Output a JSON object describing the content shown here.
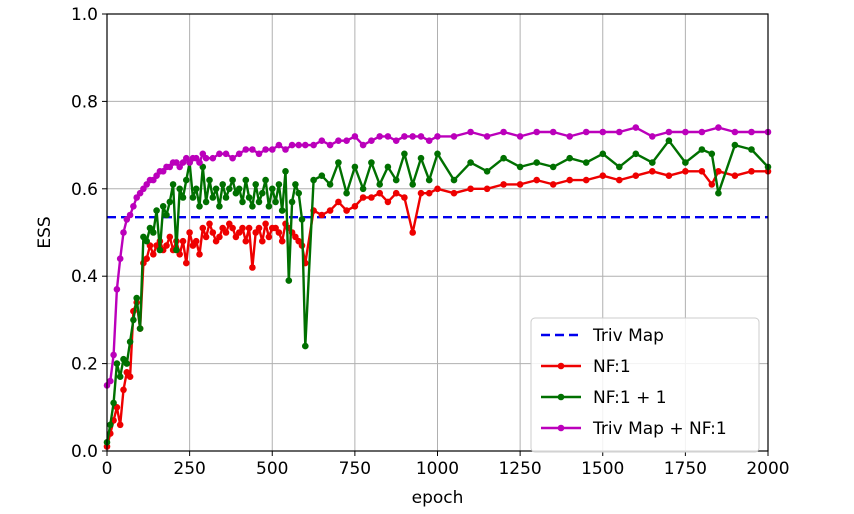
{
  "chart_data": {
    "type": "line",
    "title": "",
    "xlabel": "epoch",
    "ylabel": "ESS",
    "xlim": [
      0,
      2000
    ],
    "ylim": [
      0.0,
      1.0
    ],
    "grid": true,
    "legend_position": "bottom-right",
    "x_ticks": [
      "0",
      "250",
      "500",
      "750",
      "1000",
      "1250",
      "1500",
      "1750",
      "2000"
    ],
    "y_ticks": [
      "0.0",
      "0.2",
      "0.4",
      "0.6",
      "0.8",
      "1.0"
    ],
    "series": [
      {
        "name": "Triv Map",
        "color": "#0000ee",
        "style": "dashed",
        "markers": false,
        "x": [
          0,
          2000
        ],
        "y": [
          0.535,
          0.535
        ]
      },
      {
        "name": "NF:1",
        "color": "#ee0000",
        "style": "solid",
        "markers": true,
        "x": [
          0,
          10,
          20,
          30,
          40,
          50,
          60,
          70,
          80,
          90,
          100,
          110,
          120,
          130,
          140,
          150,
          160,
          170,
          180,
          190,
          200,
          210,
          220,
          230,
          240,
          250,
          260,
          270,
          280,
          290,
          300,
          310,
          320,
          330,
          340,
          350,
          360,
          370,
          380,
          390,
          400,
          410,
          420,
          430,
          440,
          450,
          460,
          470,
          480,
          490,
          500,
          510,
          520,
          530,
          540,
          550,
          560,
          570,
          580,
          590,
          600,
          625,
          650,
          675,
          700,
          725,
          750,
          775,
          800,
          825,
          850,
          875,
          900,
          925,
          950,
          975,
          1000,
          1050,
          1100,
          1150,
          1200,
          1250,
          1300,
          1350,
          1400,
          1450,
          1500,
          1550,
          1600,
          1650,
          1700,
          1750,
          1800,
          1830,
          1850,
          1900,
          1950,
          2000
        ],
        "y": [
          0.01,
          0.04,
          0.07,
          0.1,
          0.06,
          0.14,
          0.18,
          0.17,
          0.32,
          0.34,
          0.28,
          0.43,
          0.44,
          0.47,
          0.45,
          0.47,
          0.48,
          0.46,
          0.47,
          0.49,
          0.46,
          0.48,
          0.45,
          0.48,
          0.43,
          0.5,
          0.47,
          0.48,
          0.45,
          0.51,
          0.49,
          0.52,
          0.5,
          0.48,
          0.49,
          0.51,
          0.5,
          0.52,
          0.51,
          0.49,
          0.5,
          0.51,
          0.48,
          0.51,
          0.42,
          0.5,
          0.51,
          0.48,
          0.52,
          0.49,
          0.51,
          0.51,
          0.5,
          0.48,
          0.52,
          0.51,
          0.5,
          0.49,
          0.48,
          0.47,
          0.43,
          0.55,
          0.54,
          0.55,
          0.57,
          0.55,
          0.56,
          0.58,
          0.58,
          0.59,
          0.57,
          0.59,
          0.58,
          0.5,
          0.59,
          0.59,
          0.6,
          0.59,
          0.6,
          0.6,
          0.61,
          0.61,
          0.62,
          0.61,
          0.62,
          0.62,
          0.63,
          0.62,
          0.63,
          0.64,
          0.63,
          0.64,
          0.64,
          0.61,
          0.64,
          0.63,
          0.64,
          0.64
        ]
      },
      {
        "name": "NF:1 + 1",
        "color": "#007000",
        "style": "solid",
        "markers": true,
        "x": [
          0,
          10,
          20,
          30,
          40,
          50,
          60,
          70,
          80,
          90,
          100,
          110,
          120,
          130,
          140,
          150,
          160,
          170,
          180,
          190,
          200,
          210,
          220,
          230,
          240,
          250,
          260,
          270,
          280,
          290,
          300,
          310,
          320,
          330,
          340,
          350,
          360,
          370,
          380,
          390,
          400,
          410,
          420,
          430,
          440,
          450,
          460,
          470,
          480,
          490,
          500,
          510,
          520,
          530,
          540,
          550,
          560,
          570,
          580,
          590,
          600,
          625,
          650,
          675,
          700,
          725,
          750,
          775,
          800,
          825,
          850,
          875,
          900,
          925,
          950,
          975,
          1000,
          1050,
          1100,
          1150,
          1200,
          1250,
          1300,
          1350,
          1400,
          1450,
          1500,
          1550,
          1600,
          1650,
          1700,
          1750,
          1800,
          1830,
          1850,
          1900,
          1950,
          2000
        ],
        "y": [
          0.02,
          0.06,
          0.11,
          0.2,
          0.17,
          0.21,
          0.2,
          0.25,
          0.3,
          0.35,
          0.28,
          0.49,
          0.48,
          0.51,
          0.5,
          0.55,
          0.46,
          0.56,
          0.54,
          0.57,
          0.61,
          0.46,
          0.6,
          0.58,
          0.62,
          0.66,
          0.58,
          0.6,
          0.56,
          0.65,
          0.57,
          0.62,
          0.58,
          0.6,
          0.56,
          0.61,
          0.58,
          0.6,
          0.62,
          0.59,
          0.6,
          0.57,
          0.62,
          0.58,
          0.56,
          0.61,
          0.57,
          0.59,
          0.62,
          0.56,
          0.6,
          0.57,
          0.61,
          0.55,
          0.64,
          0.39,
          0.57,
          0.61,
          0.59,
          0.53,
          0.24,
          0.62,
          0.63,
          0.61,
          0.66,
          0.59,
          0.65,
          0.6,
          0.66,
          0.61,
          0.65,
          0.62,
          0.68,
          0.61,
          0.67,
          0.62,
          0.68,
          0.62,
          0.66,
          0.64,
          0.67,
          0.65,
          0.66,
          0.65,
          0.67,
          0.66,
          0.68,
          0.65,
          0.68,
          0.66,
          0.71,
          0.66,
          0.69,
          0.68,
          0.59,
          0.7,
          0.69,
          0.65
        ]
      },
      {
        "name": "Triv Map + NF:1",
        "color": "#bb00bb",
        "style": "solid",
        "markers": true,
        "x": [
          0,
          10,
          20,
          30,
          40,
          50,
          60,
          70,
          80,
          90,
          100,
          110,
          120,
          130,
          140,
          150,
          160,
          170,
          180,
          190,
          200,
          210,
          220,
          230,
          240,
          250,
          260,
          270,
          280,
          290,
          300,
          320,
          340,
          360,
          380,
          400,
          420,
          440,
          460,
          480,
          500,
          520,
          540,
          560,
          580,
          600,
          625,
          650,
          675,
          700,
          725,
          750,
          775,
          800,
          825,
          850,
          875,
          900,
          925,
          950,
          975,
          1000,
          1050,
          1100,
          1150,
          1200,
          1250,
          1300,
          1350,
          1400,
          1450,
          1500,
          1550,
          1600,
          1650,
          1700,
          1750,
          1800,
          1850,
          1900,
          1950,
          2000
        ],
        "y": [
          0.15,
          0.16,
          0.22,
          0.37,
          0.44,
          0.5,
          0.53,
          0.54,
          0.56,
          0.58,
          0.59,
          0.6,
          0.61,
          0.62,
          0.62,
          0.63,
          0.64,
          0.64,
          0.65,
          0.65,
          0.66,
          0.66,
          0.65,
          0.66,
          0.67,
          0.66,
          0.67,
          0.67,
          0.66,
          0.68,
          0.67,
          0.67,
          0.68,
          0.68,
          0.67,
          0.68,
          0.69,
          0.69,
          0.68,
          0.69,
          0.69,
          0.7,
          0.69,
          0.7,
          0.7,
          0.7,
          0.7,
          0.71,
          0.7,
          0.71,
          0.71,
          0.72,
          0.7,
          0.71,
          0.72,
          0.72,
          0.71,
          0.72,
          0.72,
          0.72,
          0.71,
          0.72,
          0.72,
          0.73,
          0.72,
          0.73,
          0.72,
          0.73,
          0.73,
          0.72,
          0.73,
          0.73,
          0.73,
          0.74,
          0.72,
          0.73,
          0.73,
          0.73,
          0.74,
          0.73,
          0.73,
          0.73
        ]
      }
    ]
  }
}
